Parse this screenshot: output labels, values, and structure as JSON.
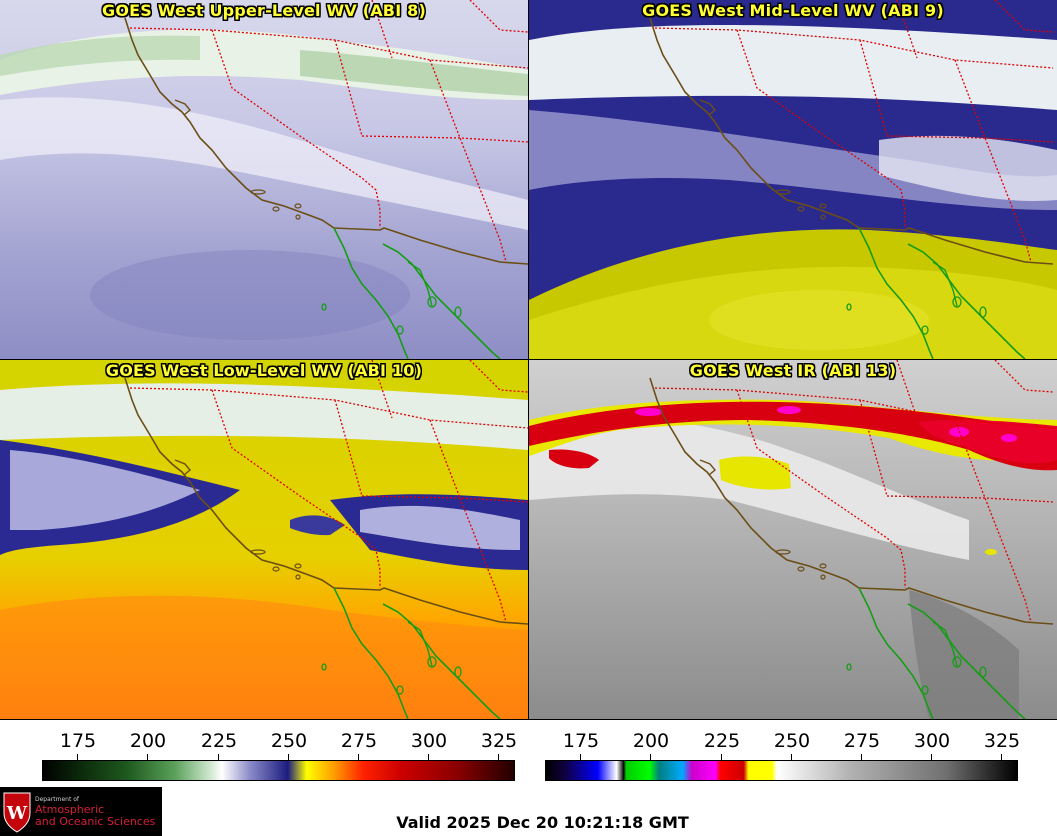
{
  "panels": [
    {
      "title": "GOES West Upper-Level WV (ABI 8)"
    },
    {
      "title": "GOES West Mid-Level WV (ABI 9)"
    },
    {
      "title": "GOES West Low-Level WV (ABI 10)"
    },
    {
      "title": "GOES West IR (ABI 13)"
    }
  ],
  "colorbar_wv": {
    "ticks": [
      "175",
      "200",
      "225",
      "250",
      "275",
      "300",
      "325"
    ]
  },
  "colorbar_ir": {
    "ticks": [
      "175",
      "200",
      "225",
      "250",
      "275",
      "300",
      "325"
    ]
  },
  "logo": {
    "dept": "Department of",
    "line1": "Atmospheric",
    "line2": "and Oceanic Sciences",
    "crest_letter": "W"
  },
  "valid_time": "Valid 2025 Dec 20 10:21:18 GMT",
  "colors": {
    "coast": "#6b4e16",
    "mexico_coast": "#169c16",
    "state_border": "#e00000",
    "title": "#ffff33"
  }
}
